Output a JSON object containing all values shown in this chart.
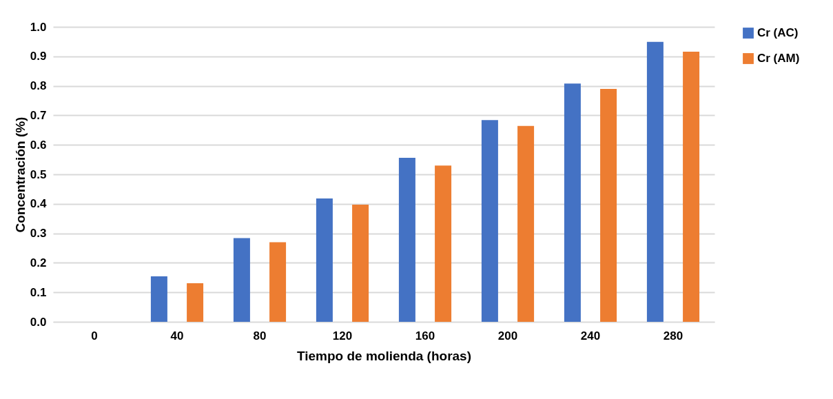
{
  "chart_data": {
    "type": "bar",
    "xlabel": "Tiempo de molienda (horas)",
    "ylabel": "Concentración (%)",
    "categories": [
      "0",
      "40",
      "80",
      "120",
      "160",
      "200",
      "240",
      "280"
    ],
    "series": [
      {
        "name": "Cr (AC)",
        "color": "#4472c4",
        "values": [
          0,
          0.154,
          0.284,
          0.418,
          0.556,
          0.684,
          0.808,
          0.949
        ]
      },
      {
        "name": "Cr (AM)",
        "color": "#ed7d31",
        "values": [
          0,
          0.131,
          0.27,
          0.397,
          0.53,
          0.664,
          0.79,
          0.916
        ]
      }
    ],
    "ylim": [
      0,
      1
    ],
    "yticks": [
      {
        "value": 0,
        "label": "0.0"
      },
      {
        "value": 0.1,
        "label": "0.1"
      },
      {
        "value": 0.2,
        "label": "0.2"
      },
      {
        "value": 0.3,
        "label": "0.3"
      },
      {
        "value": 0.4,
        "label": "0.4"
      },
      {
        "value": 0.5,
        "label": "0.5"
      },
      {
        "value": 0.6,
        "label": "0.6"
      },
      {
        "value": 0.7,
        "label": "0.7"
      },
      {
        "value": 0.8,
        "label": "0.8"
      },
      {
        "value": 0.9,
        "label": "0.9"
      },
      {
        "value": 1,
        "label": "1.0"
      }
    ],
    "grid": "y",
    "legend": "right"
  }
}
